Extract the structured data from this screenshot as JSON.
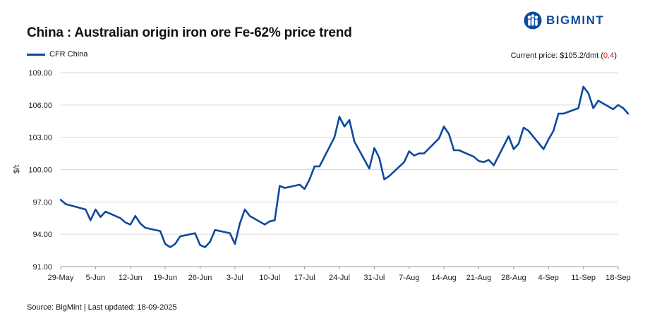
{
  "title": "China : Australian origin iron ore Fe-62% price trend",
  "brand": {
    "name": "BIGMINT",
    "logo_icon": "bigmint-people-icon",
    "color": "#0e4a9c"
  },
  "current_price": {
    "label": "Current price: $105.2/dmt (",
    "change": "0.4",
    "suffix": ")",
    "change_color": "#d0231b"
  },
  "source": "Source: BigMint | Last updated: 18-09-2025",
  "chart_data": {
    "type": "line",
    "title": "China : Australian origin iron ore Fe-62% price trend",
    "ylabel": "$/t",
    "xlabel": "",
    "ylim": [
      91,
      109
    ],
    "yticks": [
      "91.00",
      "94.00",
      "97.00",
      "100.00",
      "103.00",
      "106.00",
      "109.00"
    ],
    "ytick_values": [
      91,
      94,
      97,
      100,
      103,
      106,
      109
    ],
    "xticks": [
      "29-May",
      "5-Jun",
      "12-Jun",
      "19-Jun",
      "26-Jun",
      "3-Jul",
      "10-Jul",
      "17-Jul",
      "24-Jul",
      "31-Jul",
      "7-Aug",
      "14-Aug",
      "21-Aug",
      "28-Aug",
      "4-Sep",
      "11-Sep",
      "18-Sep"
    ],
    "x_start": "29-May",
    "x_end": "18-Sep",
    "grid": "horizontal",
    "legend": "top-left",
    "series": [
      {
        "name": "CFR China",
        "color": "#0e4a9c",
        "points": [
          [
            "29-May",
            97.2
          ],
          [
            "30-May",
            96.8
          ],
          [
            "3-Jun",
            96.3
          ],
          [
            "4-Jun",
            95.3
          ],
          [
            "5-Jun",
            96.3
          ],
          [
            "6-Jun",
            95.6
          ],
          [
            "7-Jun",
            96.1
          ],
          [
            "10-Jun",
            95.5
          ],
          [
            "11-Jun",
            95.1
          ],
          [
            "12-Jun",
            94.9
          ],
          [
            "13-Jun",
            95.7
          ],
          [
            "14-Jun",
            95.0
          ],
          [
            "15-Jun",
            94.6
          ],
          [
            "18-Jun",
            94.3
          ],
          [
            "19-Jun",
            93.1
          ],
          [
            "20-Jun",
            92.8
          ],
          [
            "21-Jun",
            93.1
          ],
          [
            "22-Jun",
            93.8
          ],
          [
            "25-Jun",
            94.1
          ],
          [
            "26-Jun",
            93.0
          ],
          [
            "27-Jun",
            92.8
          ],
          [
            "28-Jun",
            93.3
          ],
          [
            "29-Jun",
            94.4
          ],
          [
            "2-Jul",
            94.1
          ],
          [
            "3-Jul",
            93.1
          ],
          [
            "4-Jul",
            95.0
          ],
          [
            "5-Jul",
            96.3
          ],
          [
            "6-Jul",
            95.7
          ],
          [
            "9-Jul",
            94.9
          ],
          [
            "10-Jul",
            95.2
          ],
          [
            "11-Jul",
            95.3
          ],
          [
            "12-Jul",
            98.5
          ],
          [
            "13-Jul",
            98.3
          ],
          [
            "16-Jul",
            98.6
          ],
          [
            "17-Jul",
            98.2
          ],
          [
            "18-Jul",
            99.1
          ],
          [
            "19-Jul",
            100.3
          ],
          [
            "20-Jul",
            100.3
          ],
          [
            "23-Jul",
            103.0
          ],
          [
            "24-Jul",
            104.9
          ],
          [
            "25-Jul",
            104.0
          ],
          [
            "26-Jul",
            104.6
          ],
          [
            "27-Jul",
            102.6
          ],
          [
            "30-Jul",
            100.1
          ],
          [
            "31-Jul",
            102.0
          ],
          [
            "1-Aug",
            101.1
          ],
          [
            "2-Aug",
            99.1
          ],
          [
            "3-Aug",
            99.4
          ],
          [
            "6-Aug",
            100.7
          ],
          [
            "7-Aug",
            101.7
          ],
          [
            "8-Aug",
            101.3
          ],
          [
            "9-Aug",
            101.5
          ],
          [
            "10-Aug",
            101.5
          ],
          [
            "13-Aug",
            102.9
          ],
          [
            "14-Aug",
            104.0
          ],
          [
            "15-Aug",
            103.3
          ],
          [
            "16-Aug",
            101.8
          ],
          [
            "17-Aug",
            101.8
          ],
          [
            "20-Aug",
            101.2
          ],
          [
            "21-Aug",
            100.8
          ],
          [
            "22-Aug",
            100.7
          ],
          [
            "23-Aug",
            100.9
          ],
          [
            "24-Aug",
            100.4
          ],
          [
            "27-Aug",
            103.1
          ],
          [
            "28-Aug",
            101.9
          ],
          [
            "29-Aug",
            102.4
          ],
          [
            "30-Aug",
            103.9
          ],
          [
            "31-Aug",
            103.6
          ],
          [
            "3-Sep",
            101.9
          ],
          [
            "4-Sep",
            102.8
          ],
          [
            "5-Sep",
            103.6
          ],
          [
            "6-Sep",
            105.2
          ],
          [
            "7-Sep",
            105.2
          ],
          [
            "10-Sep",
            105.7
          ],
          [
            "11-Sep",
            107.7
          ],
          [
            "12-Sep",
            107.1
          ],
          [
            "13-Sep",
            105.7
          ],
          [
            "14-Sep",
            106.4
          ],
          [
            "17-Sep",
            105.6
          ],
          [
            "18-Sep",
            106.0
          ],
          [
            "19-Sep",
            105.7
          ],
          [
            "20-Sep",
            105.2
          ]
        ]
      }
    ]
  }
}
